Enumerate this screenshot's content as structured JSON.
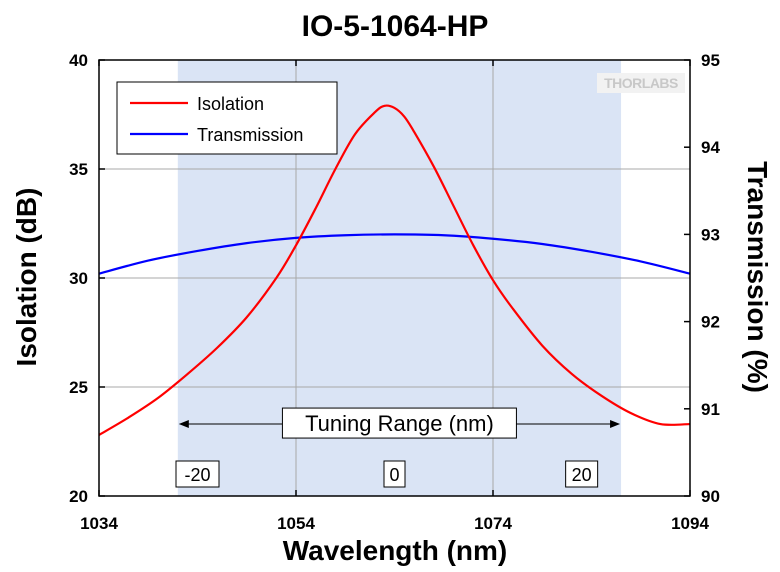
{
  "chart_data": {
    "type": "line",
    "title": "IO-5-1064-HP",
    "xlabel": "Wavelength (nm)",
    "ylabel": "Isolation (dB)",
    "y2label": "Transmission (%)",
    "xlim": [
      1034,
      1094
    ],
    "ylim": [
      20,
      40
    ],
    "y2lim": [
      90,
      95
    ],
    "xticks": [
      1034,
      1054,
      1074,
      1094
    ],
    "yticks": [
      20,
      25,
      30,
      35,
      40
    ],
    "y2ticks": [
      90,
      91,
      92,
      93,
      94,
      95
    ],
    "grid": true,
    "legend_position": "top-left",
    "series": [
      {
        "name": "Isolation",
        "axis": "left",
        "color": "#ff0000",
        "x": [
          1034,
          1037,
          1040,
          1043,
          1046,
          1049,
          1052,
          1054,
          1056,
          1058,
          1060,
          1062,
          1063,
          1064,
          1065,
          1066,
          1068,
          1070,
          1072,
          1074,
          1076,
          1079,
          1082,
          1085,
          1088,
          1091,
          1094
        ],
        "y": [
          22.8,
          23.6,
          24.5,
          25.6,
          26.8,
          28.2,
          30.0,
          31.5,
          33.2,
          35.0,
          36.6,
          37.6,
          37.9,
          37.8,
          37.4,
          36.7,
          35.1,
          33.3,
          31.5,
          29.9,
          28.6,
          26.9,
          25.6,
          24.6,
          23.8,
          23.3,
          23.3
        ]
      },
      {
        "name": "Transmission",
        "axis": "right",
        "color": "#0000ff",
        "x": [
          1034,
          1039,
          1044,
          1049,
          1054,
          1059,
          1064,
          1069,
          1074,
          1079,
          1084,
          1089,
          1094
        ],
        "y": [
          92.55,
          92.7,
          92.81,
          92.9,
          92.96,
          92.99,
          93.0,
          92.99,
          92.95,
          92.89,
          92.8,
          92.69,
          92.55
        ]
      }
    ],
    "shaded_region": {
      "x_start": 1042,
      "x_end": 1087,
      "color": "#dae4f5"
    },
    "annotation": {
      "text": "Tuning Range (nm)",
      "y": 23.3,
      "x_start": 1042,
      "x_end": 1087
    },
    "offset_labels": [
      {
        "text": "-20",
        "x": 1044
      },
      {
        "text": "0",
        "x": 1064
      },
      {
        "text": "20",
        "x": 1083
      }
    ],
    "logo": {
      "text": "THORLABS"
    }
  }
}
